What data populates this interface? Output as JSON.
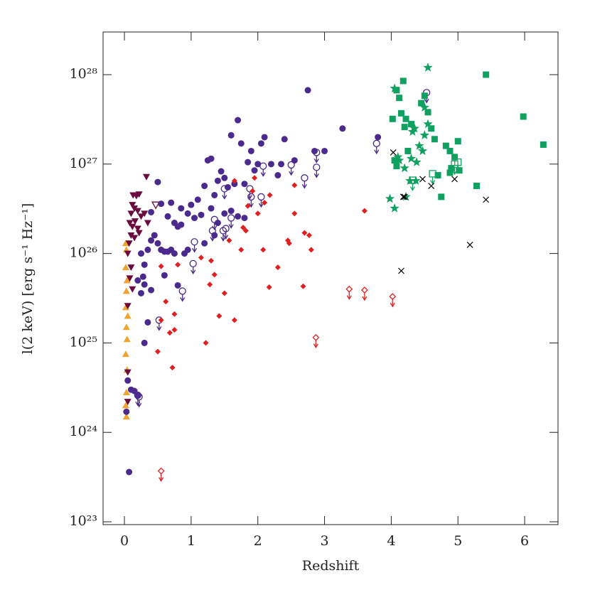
{
  "chart_data": {
    "type": "scatter",
    "xlabel": "Redshift",
    "ylabel": "l(2 keV) [erg s⁻¹ Hz⁻¹]",
    "xlim": [
      -0.32,
      6.5
    ],
    "xticks": [
      0,
      1,
      2,
      3,
      4,
      5,
      6
    ],
    "ylim": [
      9.3e+22,
      3e+28
    ],
    "ylog": true,
    "yticks": [
      {
        "value": 1e+23,
        "label": "10²³"
      },
      {
        "value": 1e+24,
        "label": "10²⁴"
      },
      {
        "value": 1e+25,
        "label": "10²⁵"
      },
      {
        "value": 1e+26,
        "label": "10²⁶"
      },
      {
        "value": 1e+27,
        "label": "10²⁷"
      },
      {
        "value": 1e+28,
        "label": "10²⁸"
      }
    ],
    "series": [
      {
        "color": "#f0a430",
        "marker": "triangle-up",
        "x": [
          0.02,
          0.03,
          0.02,
          0.04,
          0.03,
          0.02,
          0.05,
          0.03,
          0.04,
          0.02,
          0.04,
          0.03,
          0.02,
          0.03
        ],
        "values": [
          1.3e+26,
          1.1e+26,
          7e+25,
          5e+25,
          3.8e+25,
          2.5e+25,
          2e+25,
          1.5e+25,
          1.1e+25,
          7.5e+24,
          5e+24,
          2.8e+24,
          2e+24,
          1.5e+24
        ]
      },
      {
        "color": "#6b0a3c",
        "marker": "triangle-down",
        "x": [
          0.33,
          0.13,
          0.18,
          0.22,
          0.12,
          0.15,
          0.1,
          0.2,
          0.25,
          0.3,
          0.08,
          0.12,
          0.16,
          0.2,
          0.35,
          0.1,
          0.15,
          0.22,
          0.07,
          0.05,
          0.1,
          0.08,
          0.12,
          0.05,
          0.05,
          0.05
        ],
        "values": [
          7.2e+26,
          4.5e+26,
          4.4e+26,
          4.6e+26,
          3.5e+26,
          3.2e+26,
          2.8e+26,
          3e+26,
          2.6e+26,
          2.8e+26,
          2.2e+26,
          2e+26,
          2.3e+26,
          1.9e+26,
          2.2e+26,
          1.6e+26,
          1.5e+26,
          1.7e+26,
          1.3e+26,
          1e+26,
          7e+25,
          5.3e+25,
          4e+25,
          2.6e+25,
          4.7e+24,
          2.2e+24
        ]
      },
      {
        "color": "#6b0a3c",
        "marker": "triangle-down-open",
        "x": [
          0.47
        ],
        "values": [
          3.5e+26
        ]
      },
      {
        "color": "#4a2a8c",
        "marker": "circle",
        "x": [
          0.03,
          0.07,
          0.05,
          0.1,
          0.15,
          0.2,
          0.3,
          0.35,
          0.25,
          0.3,
          0.28,
          0.3,
          0.25,
          0.35,
          0.4,
          0.45,
          0.5,
          0.55,
          0.6,
          0.65,
          0.7,
          0.75,
          0.8,
          0.85,
          0.9,
          0.95,
          0.5,
          0.4,
          0.55,
          0.65,
          0.75,
          0.8,
          0.7,
          0.85,
          0.95,
          1.0,
          1.05,
          1.1,
          1.15,
          1.2,
          1.25,
          1.3,
          1.35,
          1.4,
          1.45,
          1.5,
          1.55,
          1.6,
          1.65,
          1.7,
          1.75,
          1.8,
          1.85,
          1.9,
          1.95,
          2.0,
          2.05,
          2.1,
          2.2,
          2.3,
          2.35,
          2.4,
          2.55,
          2.75,
          2.85,
          3.0,
          3.27,
          3.8,
          1.2,
          1.35,
          1.5,
          1.6,
          1.7,
          1.8,
          1.4,
          1.3,
          0.6,
          0.4,
          0.2
        ],
        "values": [
          1.7e+24,
          3.6e+23,
          3.8e+24,
          3e+24,
          2.9e+24,
          2.6e+24,
          1e+25,
          1.7e+25,
          3.6e+25,
          4.5e+25,
          5.5e+25,
          7.5e+25,
          1e+26,
          1.1e+26,
          1.4e+26,
          1.6e+26,
          1.3e+26,
          1.1e+26,
          1.05e+26,
          1.05e+26,
          1.1e+26,
          1e+26,
          2e+26,
          2.1e+26,
          1e+26,
          1.1e+26,
          6.3e+26,
          2.9e+26,
          3.6e+26,
          2.6e+26,
          2.2e+26,
          4.4e+25,
          3.7e+26,
          3.2e+26,
          2.8e+26,
          3.5e+26,
          2.5e+26,
          4e+26,
          2.7e+26,
          5.7e+26,
          1.1e+27,
          1.15e+27,
          4.5e+26,
          6.5e+26,
          8.3e+26,
          7e+26,
          5.5e+26,
          2.1e+27,
          6e+26,
          3.1e+27,
          1.7e+27,
          6e+26,
          1.05e+27,
          1.4e+27,
          8.5e+26,
          1e+27,
          1.7e+27,
          2e+27,
          1e+27,
          7.5e+26,
          1e+27,
          1.9e+27,
          1.1e+27,
          6.7e+27,
          1.4e+27,
          1.4e+27,
          2.5e+27,
          2e+27,
          1.3e+26,
          1.6e+26,
          2.8e+26,
          3e+26,
          2.6e+26,
          2.5e+26,
          2.2e+26,
          3.2e+26,
          5.7e+25,
          3.9e+25,
          5e+25
        ]
      },
      {
        "color": "#4a2a8c",
        "marker": "circle-open-limit",
        "x": [
          0.2,
          0.22,
          0.52,
          0.87,
          1.03,
          1.05,
          1.32,
          1.35,
          1.48,
          1.52,
          1.5,
          1.6,
          1.9,
          2.05,
          2.08,
          1.88,
          2.5,
          2.7,
          2.88,
          2.88,
          3.78,
          4.53
        ],
        "values": [
          2.6e+24,
          2.5e+24,
          1.8e+25,
          3.8e+25,
          7.7e+25,
          1.35e+26,
          1.8e+26,
          2.4e+26,
          1.8e+26,
          1.9e+26,
          5.3e+26,
          2.5e+26,
          4.3e+26,
          4.3e+26,
          9.5e+26,
          5.3e+26,
          9.8e+26,
          7e+26,
          1.35e+27,
          9.2e+26,
          1.7e+27,
          6.3e+27
        ]
      },
      {
        "color": "#e02020",
        "marker": "diamond",
        "x": [
          0.5,
          0.55,
          0.62,
          0.68,
          0.72,
          0.75,
          0.75,
          0.55,
          0.8,
          1.15,
          1.22,
          1.28,
          1.3,
          1.35,
          1.42,
          1.5,
          1.57,
          1.65,
          1.75,
          1.78,
          1.82,
          1.92,
          2.0,
          2.08,
          2.17,
          2.18,
          2.3,
          2.45,
          2.47,
          2.55,
          2.55,
          2.68,
          2.7,
          2.77,
          2.8,
          3.6,
          1.95,
          2.1,
          1.65,
          1.85
        ],
        "values": [
          8e+24,
          1.8e+25,
          2.9e+25,
          1.3e+25,
          5.3e+24,
          1.4e+25,
          2.1e+25,
          7.2e+25,
          7.5e+25,
          9e+25,
          1e+25,
          4.5e+25,
          8.3e+25,
          5.8e+25,
          2e+25,
          3.6e+25,
          1.4e+26,
          1.8e+25,
          1.1e+26,
          1.95e+26,
          1.8e+26,
          5e+26,
          2.8e+26,
          1.1e+26,
          4.2e+25,
          4.5e+26,
          7e+25,
          1.4e+26,
          1.3e+26,
          2.8e+26,
          5.8e+26,
          4.3e+25,
          1.7e+26,
          1.6e+26,
          1.1e+26,
          3e+26,
          7e+26,
          3.7e+26,
          6.5e+26,
          3.4e+26
        ]
      },
      {
        "color": "#e02020",
        "marker": "diamond-open-limit",
        "x": [
          0.55,
          2.87,
          3.37,
          3.6,
          4.02
        ],
        "values": [
          3.7e+23,
          1.15e+25,
          4e+25,
          3.9e+25,
          3.3e+25
        ]
      },
      {
        "color": "#10a060",
        "marker": "square",
        "x": [
          4.02,
          4.05,
          4.08,
          4.12,
          4.15,
          4.18,
          4.2,
          4.22,
          4.25,
          4.3,
          4.45,
          4.5,
          4.55,
          4.6,
          4.65,
          4.7,
          4.75,
          4.82,
          4.88,
          4.9,
          4.95,
          5.0,
          5.02,
          5.28,
          5.42,
          5.98,
          6.28,
          4.88,
          4.08
        ],
        "values": [
          3.2e+27,
          1.1e+27,
          9.5e+26,
          5.5e+27,
          3.7e+27,
          8.5e+27,
          2.6e+27,
          3.2e+27,
          1.4e+27,
          2.8e+27,
          4.8e+27,
          5.8e+27,
          3.8e+27,
          2.5e+27,
          1.9e+27,
          7.5e+26,
          4.3e+26,
          1.6e+27,
          1.4e+27,
          9e+26,
          1.2e+27,
          1.8e+27,
          8.5e+26,
          5.7e+26,
          1e+28,
          3.4e+27,
          1.65e+27,
          8e+26,
          6.7e+27
        ]
      },
      {
        "color": "#10a060",
        "marker": "star",
        "x": [
          4.55,
          4.05,
          4.1,
          4.12,
          4.2,
          4.28,
          4.32,
          4.35,
          4.38,
          4.42,
          4.5,
          4.5,
          4.55,
          4.3,
          3.98,
          4.05,
          4.22,
          4.37,
          4.47
        ],
        "values": [
          1.2e+28,
          7e+27,
          1.2e+27,
          1.1e+27,
          9e+26,
          6.5e+26,
          2.3e+27,
          2.5e+27,
          1.05e+27,
          1.6e+27,
          4.3e+27,
          2.1e+27,
          2.8e+27,
          1.15e+27,
          4.1e+26,
          3.2e+26,
          4.3e+26,
          6.5e+26,
          1.4e+27
        ]
      },
      {
        "color": "#10a060",
        "marker": "square-open-limit",
        "x": [
          4.62,
          4.95,
          5.0,
          4.32
        ],
        "values": [
          7.8e+26,
          1e+27,
          1.05e+27,
          6.6e+26
        ]
      },
      {
        "color": "#000000",
        "marker": "x",
        "x": [
          4.03,
          4.15,
          4.18,
          4.2,
          4.47,
          4.6,
          4.95,
          5.18,
          5.42
        ],
        "values": [
          1.35e+27,
          6.4e+25,
          4.3e+26,
          4.3e+26,
          6.8e+26,
          5.7e+26,
          6.8e+26,
          1.25e+26,
          4e+26
        ]
      }
    ]
  }
}
